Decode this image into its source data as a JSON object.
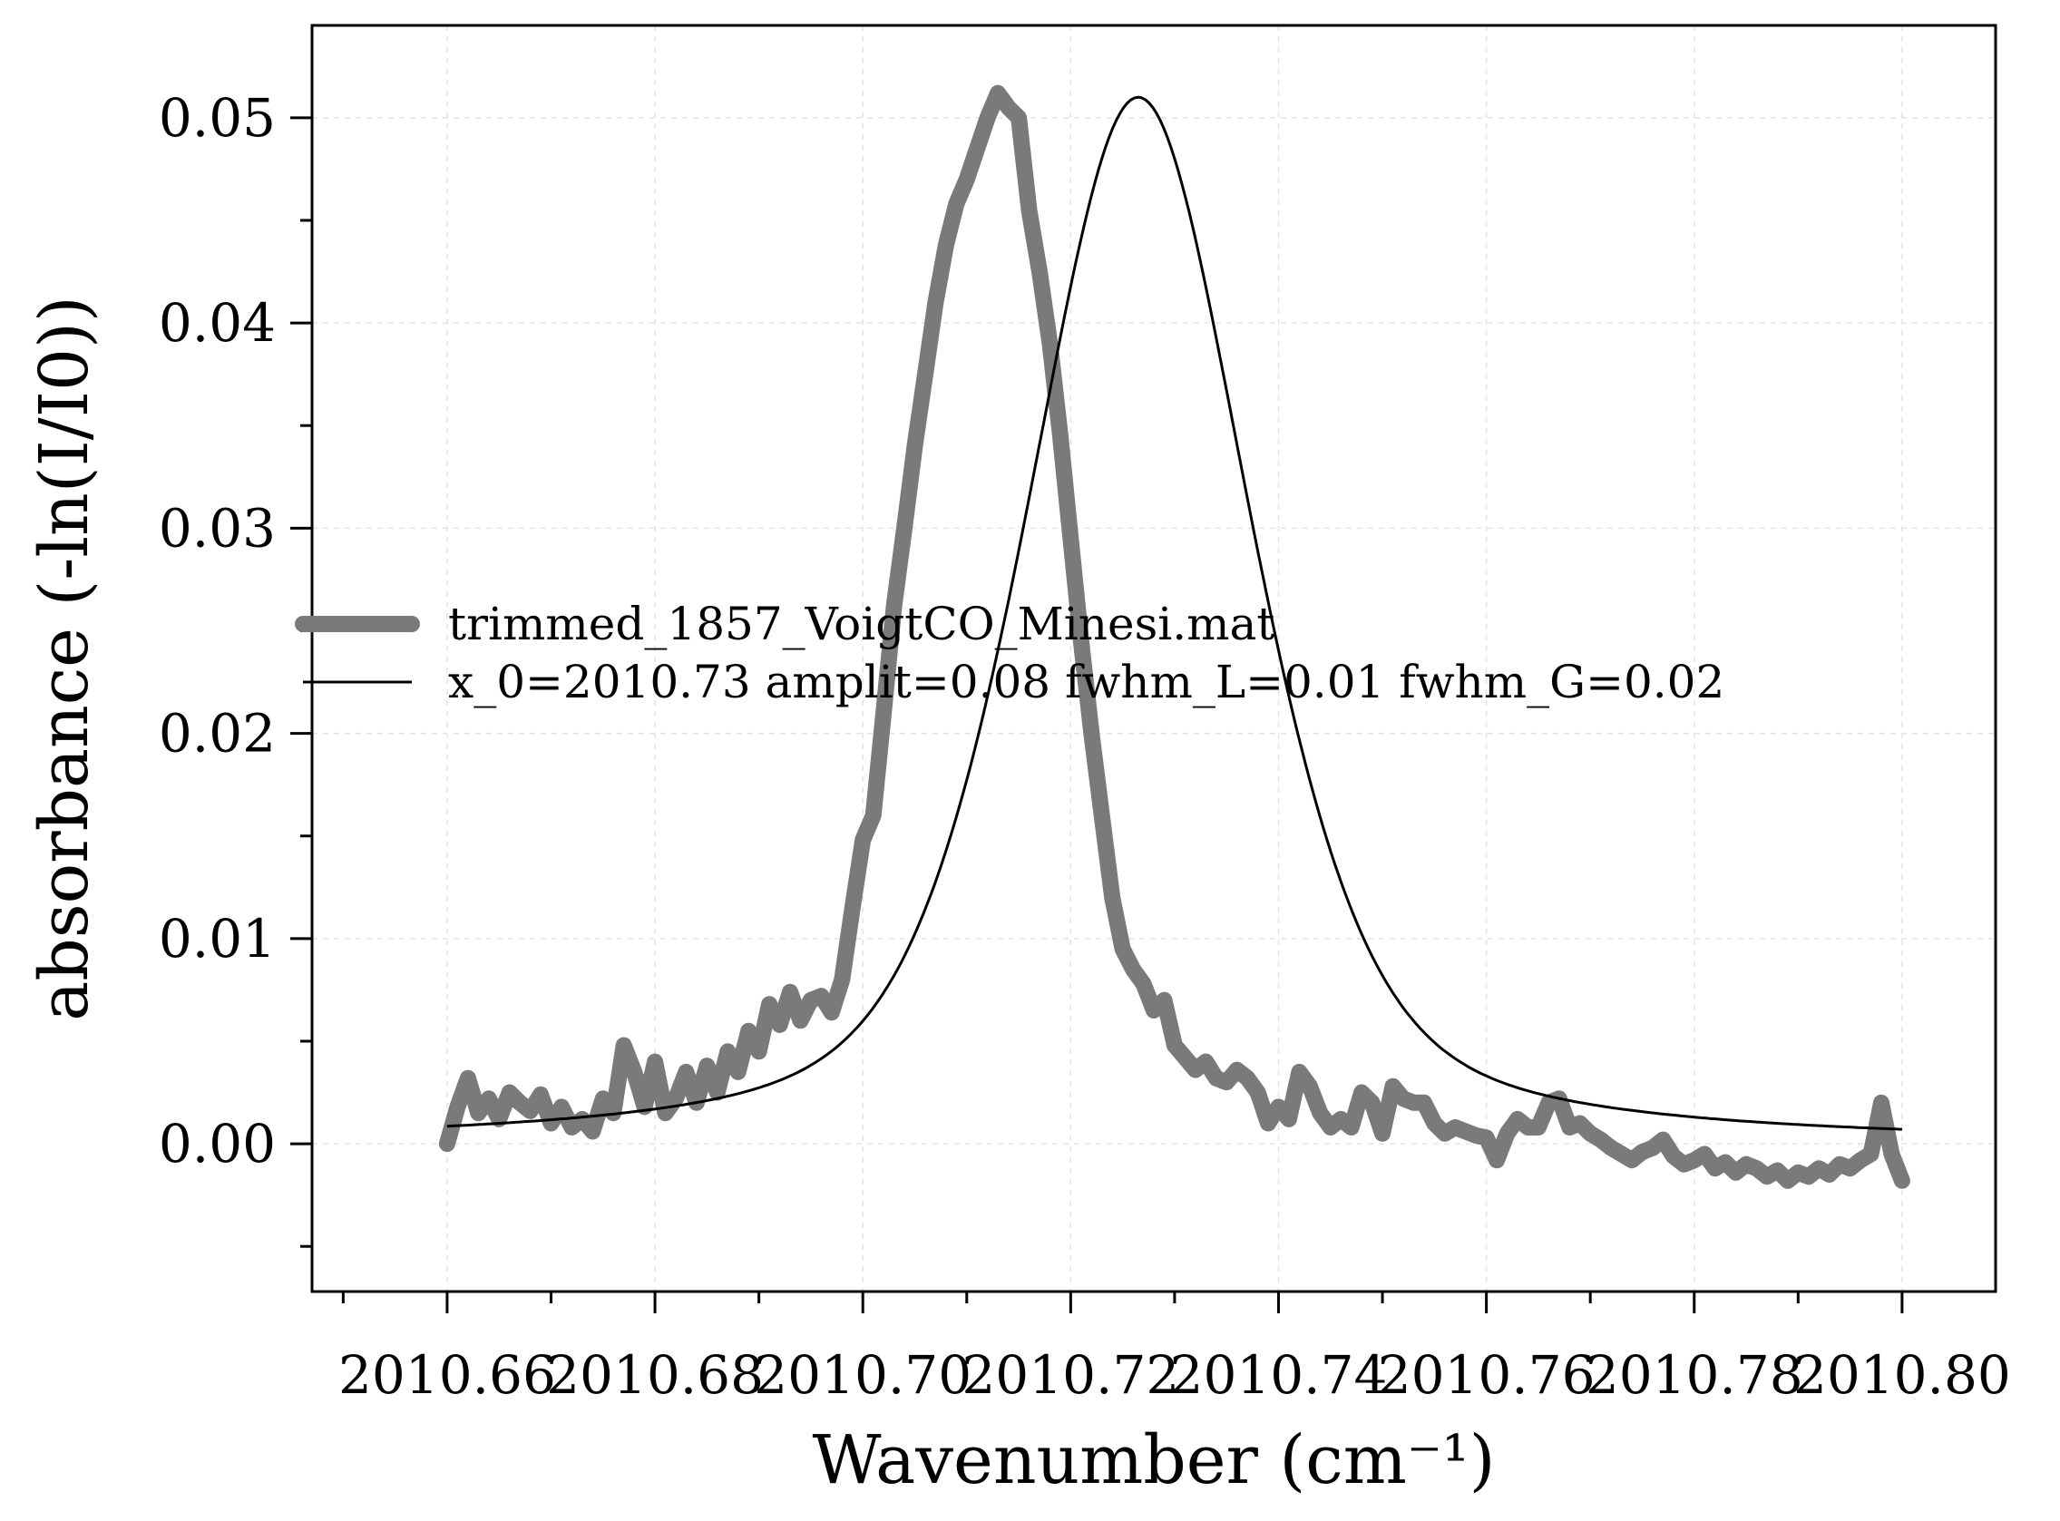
{
  "colors": {
    "data_line": "#7a7a7a",
    "fit_line": "#000000",
    "axes": "#000000",
    "grid": "#e4e4e4"
  },
  "chart_data": {
    "type": "line",
    "xlabel": "Wavenumber (cm⁻¹)",
    "ylabel": "absorbance (-ln(I/I0))",
    "xlim": [
      2010.647,
      2010.809
    ],
    "ylim": [
      -0.0072,
      0.0545
    ],
    "x_ticks": [
      2010.66,
      2010.68,
      2010.7,
      2010.72,
      2010.74,
      2010.76,
      2010.78,
      2010.8
    ],
    "x_tick_labels": [
      "2010.66",
      "2010.68",
      "2010.70",
      "2010.72",
      "2010.74",
      "2010.76",
      "2010.78",
      "2010.80"
    ],
    "x_minor_ticks": [
      2010.65,
      2010.67,
      2010.69,
      2010.71,
      2010.73,
      2010.75,
      2010.77,
      2010.79
    ],
    "y_ticks": [
      0.0,
      0.01,
      0.02,
      0.03,
      0.04,
      0.05
    ],
    "y_tick_labels": [
      "0.00",
      "0.01",
      "0.02",
      "0.03",
      "0.04",
      "0.05"
    ],
    "y_minor_ticks": [
      -0.005,
      0.005,
      0.015,
      0.025,
      0.035,
      0.045
    ],
    "grid": true,
    "legend_position": "center-left",
    "series": [
      {
        "name": "trimmed_1857_VoigtCO_Minesi.mat",
        "style": "thick-gray",
        "x": [
          2010.66,
          2010.661,
          2010.662,
          2010.663,
          2010.664,
          2010.665,
          2010.666,
          2010.667,
          2010.668,
          2010.669,
          2010.67,
          2010.671,
          2010.672,
          2010.673,
          2010.674,
          2010.675,
          2010.676,
          2010.677,
          2010.678,
          2010.679,
          2010.68,
          2010.681,
          2010.682,
          2010.683,
          2010.684,
          2010.685,
          2010.686,
          2010.687,
          2010.688,
          2010.689,
          2010.69,
          2010.691,
          2010.692,
          2010.693,
          2010.694,
          2010.695,
          2010.696,
          2010.697,
          2010.698,
          2010.699,
          2010.7,
          2010.701,
          2010.702,
          2010.703,
          2010.704,
          2010.705,
          2010.706,
          2010.707,
          2010.708,
          2010.709,
          2010.71,
          2010.711,
          2010.712,
          2010.713,
          2010.714,
          2010.715,
          2010.716,
          2010.717,
          2010.718,
          2010.719,
          2010.72,
          2010.721,
          2010.722,
          2010.723,
          2010.724,
          2010.725,
          2010.726,
          2010.727,
          2010.728,
          2010.729,
          2010.73,
          2010.731,
          2010.732,
          2010.733,
          2010.734,
          2010.735,
          2010.736,
          2010.737,
          2010.738,
          2010.739,
          2010.74,
          2010.741,
          2010.742,
          2010.743,
          2010.744,
          2010.745,
          2010.746,
          2010.747,
          2010.748,
          2010.749,
          2010.75,
          2010.751,
          2010.752,
          2010.753,
          2010.754,
          2010.755,
          2010.756,
          2010.757,
          2010.758,
          2010.759,
          2010.76,
          2010.761,
          2010.762,
          2010.763,
          2010.764,
          2010.765,
          2010.766,
          2010.767,
          2010.768,
          2010.769,
          2010.77,
          2010.771,
          2010.772,
          2010.773,
          2010.774,
          2010.775,
          2010.776,
          2010.777,
          2010.778,
          2010.779,
          2010.78,
          2010.781,
          2010.782,
          2010.783,
          2010.784,
          2010.785,
          2010.786,
          2010.787,
          2010.788,
          2010.789,
          2010.79,
          2010.791,
          2010.792,
          2010.793,
          2010.794,
          2010.795,
          2010.796,
          2010.797,
          2010.798,
          2010.799,
          2010.8
        ],
        "y": [
          0.0,
          0.0018,
          0.0032,
          0.0015,
          0.0022,
          0.0012,
          0.0025,
          0.002,
          0.0016,
          0.0024,
          0.001,
          0.0018,
          0.0008,
          0.0012,
          0.0006,
          0.0022,
          0.0015,
          0.0048,
          0.0035,
          0.0018,
          0.004,
          0.0015,
          0.0022,
          0.0035,
          0.002,
          0.0038,
          0.0025,
          0.0045,
          0.0035,
          0.0055,
          0.0045,
          0.0068,
          0.0058,
          0.0074,
          0.006,
          0.007,
          0.0072,
          0.0064,
          0.008,
          0.0115,
          0.0148,
          0.016,
          0.021,
          0.0262,
          0.03,
          0.034,
          0.0375,
          0.041,
          0.0438,
          0.0458,
          0.047,
          0.0485,
          0.05,
          0.0512,
          0.0505,
          0.05,
          0.0455,
          0.0425,
          0.039,
          0.0345,
          0.0295,
          0.0245,
          0.02,
          0.016,
          0.012,
          0.0095,
          0.0085,
          0.0078,
          0.0065,
          0.007,
          0.0048,
          0.0042,
          0.0036,
          0.004,
          0.0032,
          0.003,
          0.0036,
          0.0032,
          0.0025,
          0.001,
          0.0018,
          0.0012,
          0.0035,
          0.0028,
          0.0015,
          0.0008,
          0.0012,
          0.0008,
          0.0025,
          0.002,
          0.0005,
          0.0028,
          0.0022,
          0.002,
          0.002,
          0.001,
          0.0005,
          0.0008,
          0.0006,
          0.0004,
          0.0003,
          -0.0008,
          0.0005,
          0.0012,
          0.0008,
          0.0008,
          0.002,
          0.0022,
          0.0008,
          0.001,
          0.0005,
          0.0002,
          -0.0002,
          -0.0005,
          -0.0008,
          -0.0004,
          -0.0002,
          0.0002,
          -0.0006,
          -0.001,
          -0.0008,
          -0.0005,
          -0.0012,
          -0.0009,
          -0.0014,
          -0.001,
          -0.0012,
          -0.0016,
          -0.0013,
          -0.0018,
          -0.0014,
          -0.0016,
          -0.0012,
          -0.0015,
          -0.001,
          -0.0012,
          -0.0008,
          -0.0005,
          0.002,
          -0.0005,
          -0.0018
        ]
      },
      {
        "name": "x_0=2010.73 amplit=0.08 fwhm_L=0.01 fwhm_G=0.02",
        "style": "thin-black",
        "model": "voigt",
        "x0": 2010.7265,
        "peak": 0.051,
        "fwhm_L": 0.01,
        "fwhm_G": 0.02,
        "x_range": [
          2010.66,
          2010.8
        ]
      }
    ]
  }
}
